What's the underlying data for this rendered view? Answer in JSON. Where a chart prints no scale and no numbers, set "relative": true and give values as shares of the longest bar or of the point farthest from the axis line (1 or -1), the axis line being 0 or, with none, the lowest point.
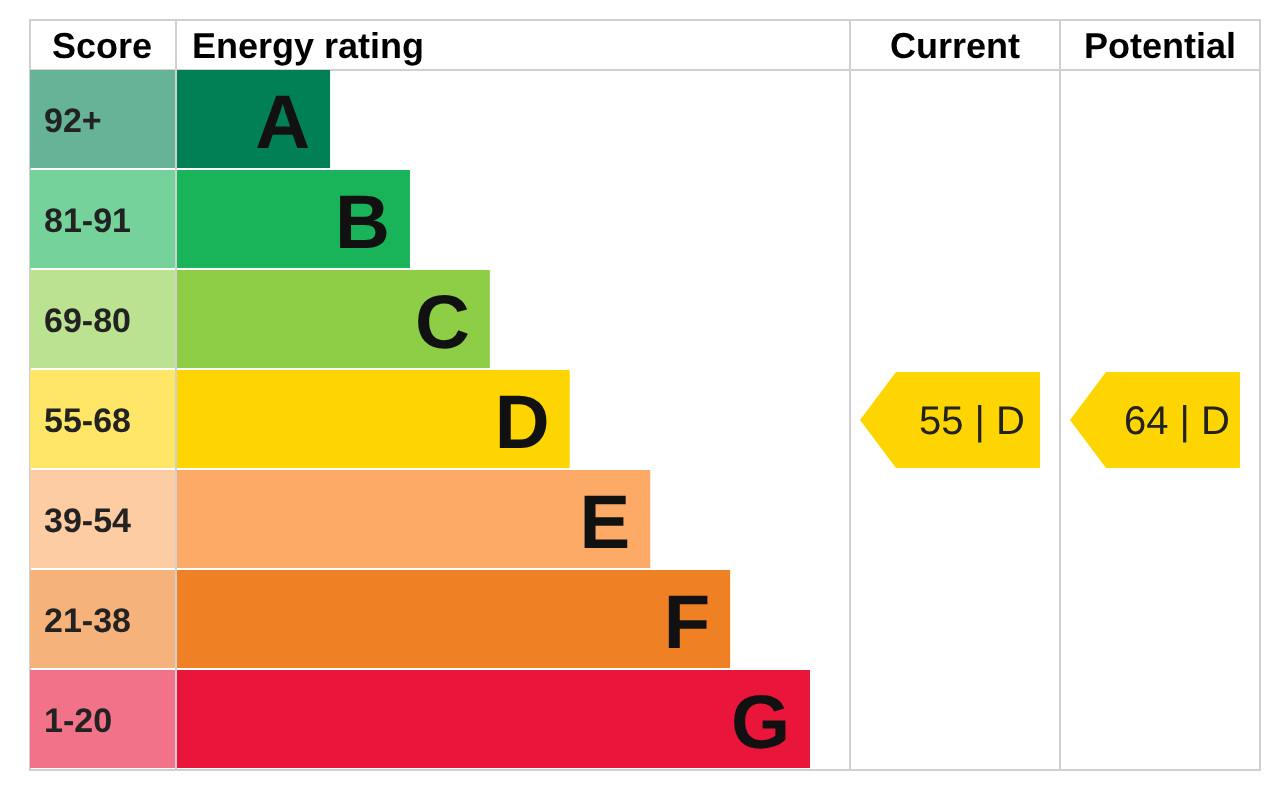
{
  "chart_data": {
    "type": "bar",
    "orientation": "horizontal",
    "relative": true,
    "ylabel": "Score",
    "xlabel": "Energy rating",
    "categories": [
      "92+",
      "81-91",
      "69-80",
      "55-68",
      "39-54",
      "21-38",
      "1-20"
    ],
    "values": [
      0.243,
      0.369,
      0.495,
      0.621,
      0.748,
      0.874,
      1
    ],
    "colors": [
      "#008054",
      "#19b459",
      "#8dce46",
      "#ffd500",
      "#fcaa65",
      "#ef8023",
      "#e9153b"
    ],
    "annotations": [
      {
        "text": "A",
        "y": "92+"
      },
      {
        "text": "B",
        "y": "81-91"
      },
      {
        "text": "C",
        "y": "69-80"
      },
      {
        "text": "D",
        "y": "55-68"
      },
      {
        "text": "E",
        "y": "39-54"
      },
      {
        "text": "F",
        "y": "21-38"
      },
      {
        "text": "G",
        "y": "1-20"
      },
      "Current",
      "Potential",
      "55 | D",
      "64 | D"
    ]
  }
}
